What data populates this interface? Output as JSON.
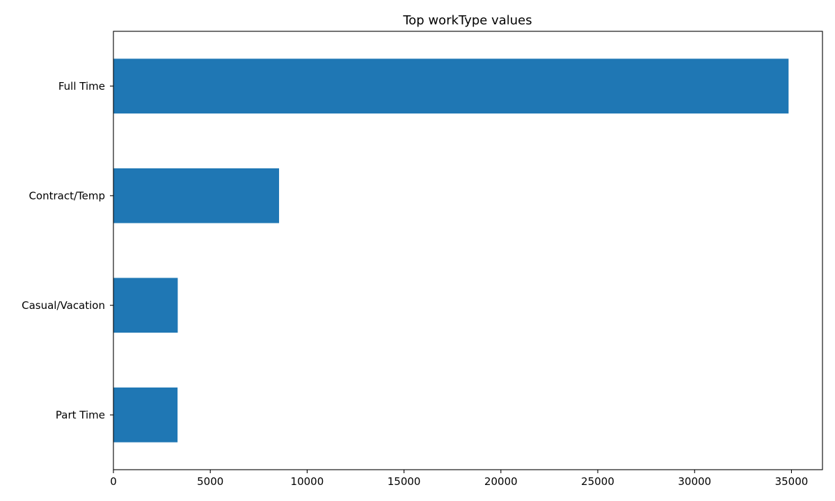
{
  "chart_data": {
    "type": "bar",
    "orientation": "horizontal",
    "title": "Top workType values",
    "xlabel": "",
    "ylabel": "",
    "categories": [
      "Full Time",
      "Contract/Temp",
      "Casual/Vacation",
      "Part Time"
    ],
    "values": [
      34850,
      8550,
      3320,
      3310
    ],
    "xlim": [
      0,
      36600
    ],
    "xticks": [
      0,
      5000,
      10000,
      15000,
      20000,
      25000,
      30000,
      35000
    ],
    "grid": false,
    "legend": "none",
    "bar_color": "#1f77b4"
  }
}
